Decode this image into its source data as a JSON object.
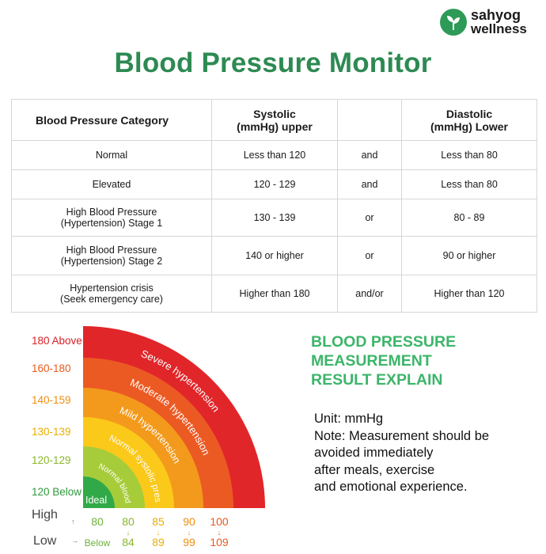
{
  "brand": {
    "name_line1": "sahyog",
    "name_line2": "wellness",
    "icon": "leaf-icon",
    "color": "#2e9a57"
  },
  "title": "Blood Pressure Monitor",
  "table": {
    "headers": {
      "category": "Blood Pressure Category",
      "systolic_line1": "Systolic",
      "systolic_line2": "(mmHg) upper",
      "connector": "",
      "diastolic_line1": "Diastolic",
      "diastolic_line2": "(mmHg) Lower"
    },
    "rows": [
      {
        "category_line1": "Normal",
        "category_line2": "",
        "systolic": "Less than 120",
        "connector": "and",
        "diastolic": "Less than 80"
      },
      {
        "category_line1": "Elevated",
        "category_line2": "",
        "systolic": "120 - 129",
        "connector": "and",
        "diastolic": "Less than 80"
      },
      {
        "category_line1": "High Blood Pressure",
        "category_line2": "(Hypertension) Stage 1",
        "systolic": "130 - 139",
        "connector": "or",
        "diastolic": "80 - 89"
      },
      {
        "category_line1": "High Blood Pressure",
        "category_line2": "(Hypertension) Stage 2",
        "systolic": "140 or higher",
        "connector": "or",
        "diastolic": "90 or higher"
      },
      {
        "category_line1": "Hypertension crisis",
        "category_line2": "(Seek emergency care)",
        "systolic": "Higher than 180",
        "connector": "and/or",
        "diastolic": "Higher than 120"
      }
    ]
  },
  "gauge": {
    "bands": [
      {
        "range": "180 Above",
        "arc_label": "Severe hypertension",
        "color": "#e1262a",
        "label_color": "#d81f26"
      },
      {
        "range": "160-180",
        "arc_label": "Moderate hypertension",
        "color": "#ec5a23",
        "label_color": "#e85a1e"
      },
      {
        "range": "140-159",
        "arc_label": "Mild hypertension",
        "color": "#f39a1c",
        "label_color": "#ef8e10"
      },
      {
        "range": "130-139",
        "arc_label": "Normal systolic pressure",
        "color": "#fbc91a",
        "label_color": "#e9ae00"
      },
      {
        "range": "120-129",
        "arc_label": "Normal blood pressure value",
        "color": "#a7cc3a",
        "label_color": "#8ab62b"
      },
      {
        "range": "120 Below",
        "arc_label": "Ideal",
        "color": "#31a948",
        "label_color": "#2f9a3e"
      }
    ],
    "row_labels": {
      "high": "High",
      "low": "Low"
    },
    "high_values": [
      "80",
      "80",
      "85",
      "90",
      "100"
    ],
    "low_values": [
      "Below",
      "84",
      "89",
      "99",
      "109"
    ],
    "value_colors": [
      "#6fb23a",
      "#8ab62b",
      "#e9ae00",
      "#ef8e10",
      "#e85a1e"
    ]
  },
  "explain": {
    "title_line1": "BLOOD PRESSURE",
    "title_line2": "MEASUREMENT",
    "title_line3": "RESULT EXPLAIN",
    "unit": "Unit: mmHg",
    "note_line1": "Note: Measurement should be",
    "note_line2": "avoided immediately",
    "note_line3": "after meals, exercise",
    "note_line4": "and emotional experience."
  }
}
